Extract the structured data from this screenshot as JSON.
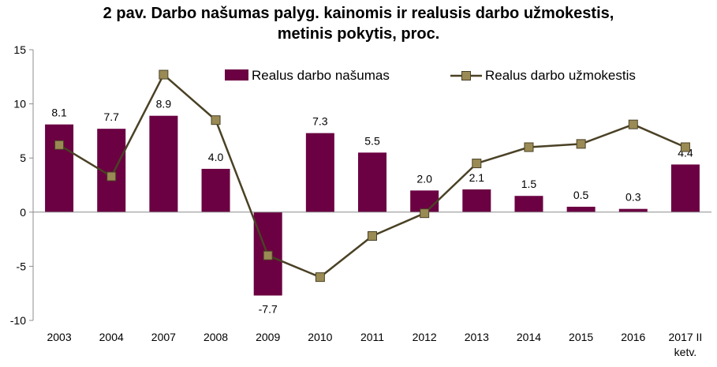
{
  "chart_data": {
    "type": "bar",
    "title_lines": [
      "2 pav. Darbo našumas palyg. kainomis ir realusis darbo užmokestis,",
      "metinis pokytis, proc."
    ],
    "categories": [
      "2003",
      "2004",
      "2007",
      "2008",
      "2009",
      "2010",
      "2011",
      "2012",
      "2013",
      "2014",
      "2015",
      "2016",
      "2017 II ketv."
    ],
    "series": [
      {
        "name": "Realus darbo našumas",
        "type": "bar",
        "color": "#6b0042",
        "values": [
          8.1,
          7.7,
          8.9,
          4.0,
          -7.7,
          7.3,
          5.5,
          2.0,
          2.1,
          1.5,
          0.5,
          0.3,
          4.4
        ],
        "labels": [
          "8.1",
          "7.7",
          "8.9",
          "4.0",
          "-7.7",
          "7.3",
          "5.5",
          "2.0",
          "2.1",
          "1.5",
          "0.5",
          "0.3",
          "4.4"
        ]
      },
      {
        "name": "Realus darbo užmokestis",
        "type": "line",
        "color": "#4a4125",
        "marker_color": "#9a8b55",
        "values": [
          6.2,
          3.3,
          12.7,
          8.5,
          -4.0,
          -6.0,
          -2.2,
          -0.1,
          4.5,
          6.0,
          6.3,
          8.1,
          6.0
        ]
      }
    ],
    "y_ticks": [
      "15",
      "10",
      "5",
      "0",
      "-5",
      "-10"
    ],
    "ylim": [
      -10,
      15
    ],
    "legend_position": "top",
    "grid": false
  }
}
